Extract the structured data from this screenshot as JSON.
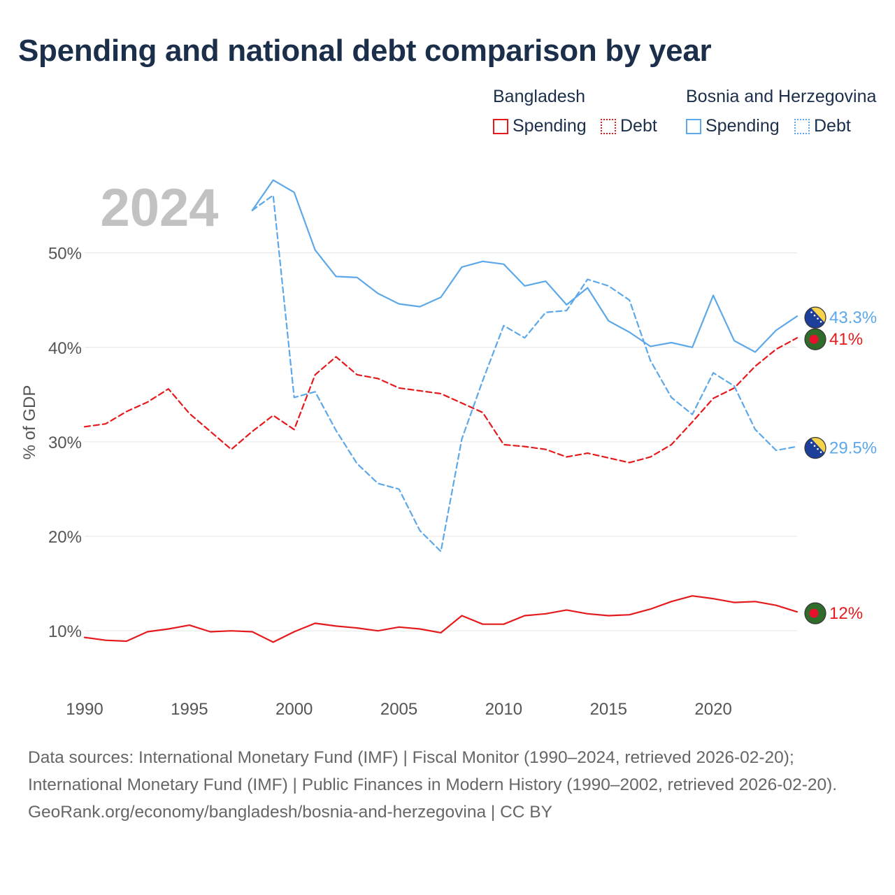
{
  "title": "Spending and national debt comparison by year",
  "legend": {
    "groups": [
      {
        "name": "Bangladesh",
        "color": "#e41a1c",
        "spending_label": "Spending",
        "debt_label": "Debt"
      },
      {
        "name": "Bosnia and Herzegovina",
        "color": "#5da8e8",
        "spending_label": "Spending",
        "debt_label": "Debt"
      }
    ]
  },
  "footer": {
    "sources": "Data sources: International Monetary Fund (IMF) | Fiscal Monitor (1990–2024, retrieved 2026-02-20); International Monetary Fund (IMF) | Public Finances in Modern History (1990–2002, retrieved 2026-02-20).",
    "credit": "GeoRank.org/economy/bangladesh/bosnia-and-herzegovina | CC BY"
  },
  "chart_data": {
    "type": "line",
    "title": "Spending and national debt comparison by year",
    "year_label": "2024",
    "ylabel": "% of GDP",
    "xlabel": "",
    "xlim": [
      1990,
      2024
    ],
    "ylim": [
      3.5,
      59
    ],
    "x_ticks": [
      1990,
      1995,
      2000,
      2005,
      2010,
      2015,
      2020
    ],
    "y_ticks": [
      10,
      20,
      30,
      40,
      50
    ],
    "y_tick_labels": [
      "10%",
      "20%",
      "30%",
      "40%",
      "50%"
    ],
    "grid": true,
    "series": [
      {
        "name": "Bangladesh Spending",
        "country": "Bangladesh",
        "color": "#e41a1c",
        "dash": "solid",
        "end_label": "12%",
        "flag": "bangladesh",
        "x": [
          1990,
          1991,
          1992,
          1993,
          1994,
          1995,
          1996,
          1997,
          1998,
          1999,
          2000,
          2001,
          2002,
          2003,
          2004,
          2005,
          2006,
          2007,
          2008,
          2009,
          2010,
          2011,
          2012,
          2013,
          2014,
          2015,
          2016,
          2017,
          2018,
          2019,
          2020,
          2021,
          2022,
          2023,
          2024
        ],
        "values": [
          9.3,
          9.0,
          8.9,
          9.9,
          10.2,
          10.6,
          9.9,
          10.0,
          9.9,
          8.8,
          9.9,
          10.8,
          10.5,
          10.3,
          10.0,
          10.4,
          10.2,
          9.8,
          11.6,
          10.7,
          10.7,
          11.6,
          11.8,
          12.2,
          11.8,
          11.6,
          11.7,
          12.3,
          13.1,
          13.7,
          13.4,
          13.0,
          13.1,
          12.7,
          12.0
        ]
      },
      {
        "name": "Bangladesh Debt",
        "country": "Bangladesh",
        "color": "#e41a1c",
        "dash": "dashed",
        "end_label": "41%",
        "flag": "bangladesh",
        "x": [
          1990,
          1991,
          1992,
          1993,
          1994,
          1995,
          1996,
          1997,
          1998,
          1999,
          2000,
          2001,
          2002,
          2003,
          2004,
          2005,
          2006,
          2007,
          2008,
          2009,
          2010,
          2011,
          2012,
          2013,
          2014,
          2015,
          2016,
          2017,
          2018,
          2019,
          2020,
          2021,
          2022,
          2023,
          2024
        ],
        "values": [
          31.6,
          31.9,
          33.2,
          34.2,
          35.6,
          33.0,
          31.1,
          29.2,
          31.1,
          32.8,
          31.3,
          37.1,
          39.0,
          37.1,
          36.7,
          35.7,
          35.4,
          35.1,
          34.1,
          33.1,
          29.7,
          29.5,
          29.2,
          28.4,
          28.8,
          28.3,
          27.8,
          28.4,
          29.7,
          32.1,
          34.6,
          35.7,
          38.0,
          39.8,
          41.0
        ]
      },
      {
        "name": "Bosnia and Herzegovina Spending",
        "country": "Bosnia and Herzegovina",
        "color": "#5da8e8",
        "dash": "solid",
        "end_label": "43.3%",
        "flag": "bosnia",
        "x": [
          1998,
          1999,
          2000,
          2001,
          2002,
          2003,
          2004,
          2005,
          2006,
          2007,
          2008,
          2009,
          2010,
          2011,
          2012,
          2013,
          2014,
          2015,
          2016,
          2017,
          2018,
          2019,
          2020,
          2021,
          2022,
          2023,
          2024
        ],
        "values": [
          54.5,
          57.7,
          56.4,
          50.3,
          47.5,
          47.4,
          45.7,
          44.6,
          44.3,
          45.3,
          48.5,
          49.1,
          48.8,
          46.5,
          47.0,
          44.5,
          46.3,
          42.8,
          41.6,
          40.1,
          40.5,
          40.0,
          45.5,
          40.7,
          39.5,
          41.8,
          43.3
        ]
      },
      {
        "name": "Bosnia and Herzegovina Debt",
        "country": "Bosnia and Herzegovina",
        "color": "#5da8e8",
        "dash": "dashed",
        "end_label": "29.5%",
        "flag": "bosnia",
        "x": [
          1998,
          1999,
          2000,
          2001,
          2002,
          2003,
          2004,
          2005,
          2006,
          2007,
          2008,
          2009,
          2010,
          2011,
          2012,
          2013,
          2014,
          2015,
          2016,
          2017,
          2018,
          2019,
          2020,
          2021,
          2022,
          2023,
          2024
        ],
        "values": [
          54.5,
          56.1,
          34.7,
          35.3,
          31.2,
          27.7,
          25.6,
          25.0,
          20.6,
          18.4,
          30.3,
          36.5,
          42.3,
          41.0,
          43.7,
          43.9,
          47.2,
          46.5,
          45.0,
          38.6,
          34.7,
          32.9,
          37.3,
          35.9,
          31.3,
          29.1,
          29.5
        ]
      }
    ]
  }
}
